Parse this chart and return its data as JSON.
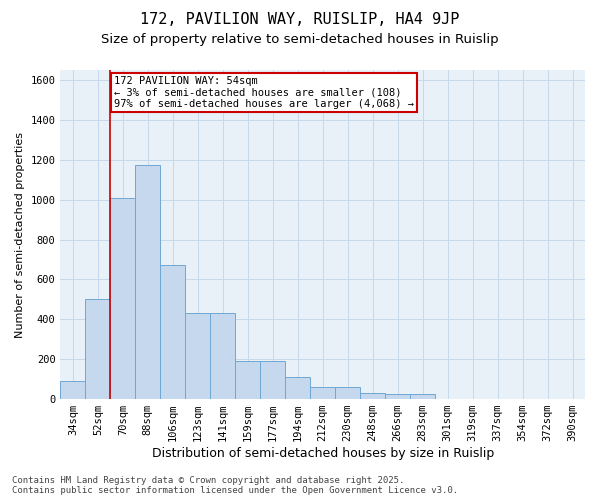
{
  "title": "172, PAVILION WAY, RUISLIP, HA4 9JP",
  "subtitle": "Size of property relative to semi-detached houses in Ruislip",
  "xlabel": "Distribution of semi-detached houses by size in Ruislip",
  "ylabel": "Number of semi-detached properties",
  "categories": [
    "34sqm",
    "52sqm",
    "70sqm",
    "88sqm",
    "106sqm",
    "123sqm",
    "141sqm",
    "159sqm",
    "177sqm",
    "194sqm",
    "212sqm",
    "230sqm",
    "248sqm",
    "266sqm",
    "283sqm",
    "301sqm",
    "319sqm",
    "337sqm",
    "354sqm",
    "372sqm",
    "390sqm"
  ],
  "values": [
    90,
    500,
    1010,
    1175,
    670,
    430,
    430,
    190,
    190,
    110,
    60,
    60,
    30,
    25,
    25,
    0,
    0,
    0,
    0,
    0,
    0
  ],
  "bar_color": "#c5d8ee",
  "bar_edge_color": "#6fa8d4",
  "annotation_box_text": "172 PAVILION WAY: 54sqm\n← 3% of semi-detached houses are smaller (108)\n97% of semi-detached houses are larger (4,068) →",
  "annotation_box_color": "#ffffff",
  "annotation_box_edge_color": "#cc0000",
  "vline_color": "#cc0000",
  "ylim": [
    0,
    1650
  ],
  "yticks": [
    0,
    200,
    400,
    600,
    800,
    1000,
    1200,
    1400,
    1600
  ],
  "grid_color": "#c8d8eb",
  "background_color": "#e8f0f8",
  "footer_line1": "Contains HM Land Registry data © Crown copyright and database right 2025.",
  "footer_line2": "Contains public sector information licensed under the Open Government Licence v3.0.",
  "title_fontsize": 11,
  "subtitle_fontsize": 9.5,
  "xlabel_fontsize": 9,
  "ylabel_fontsize": 8,
  "tick_fontsize": 7.5,
  "footer_fontsize": 6.5
}
